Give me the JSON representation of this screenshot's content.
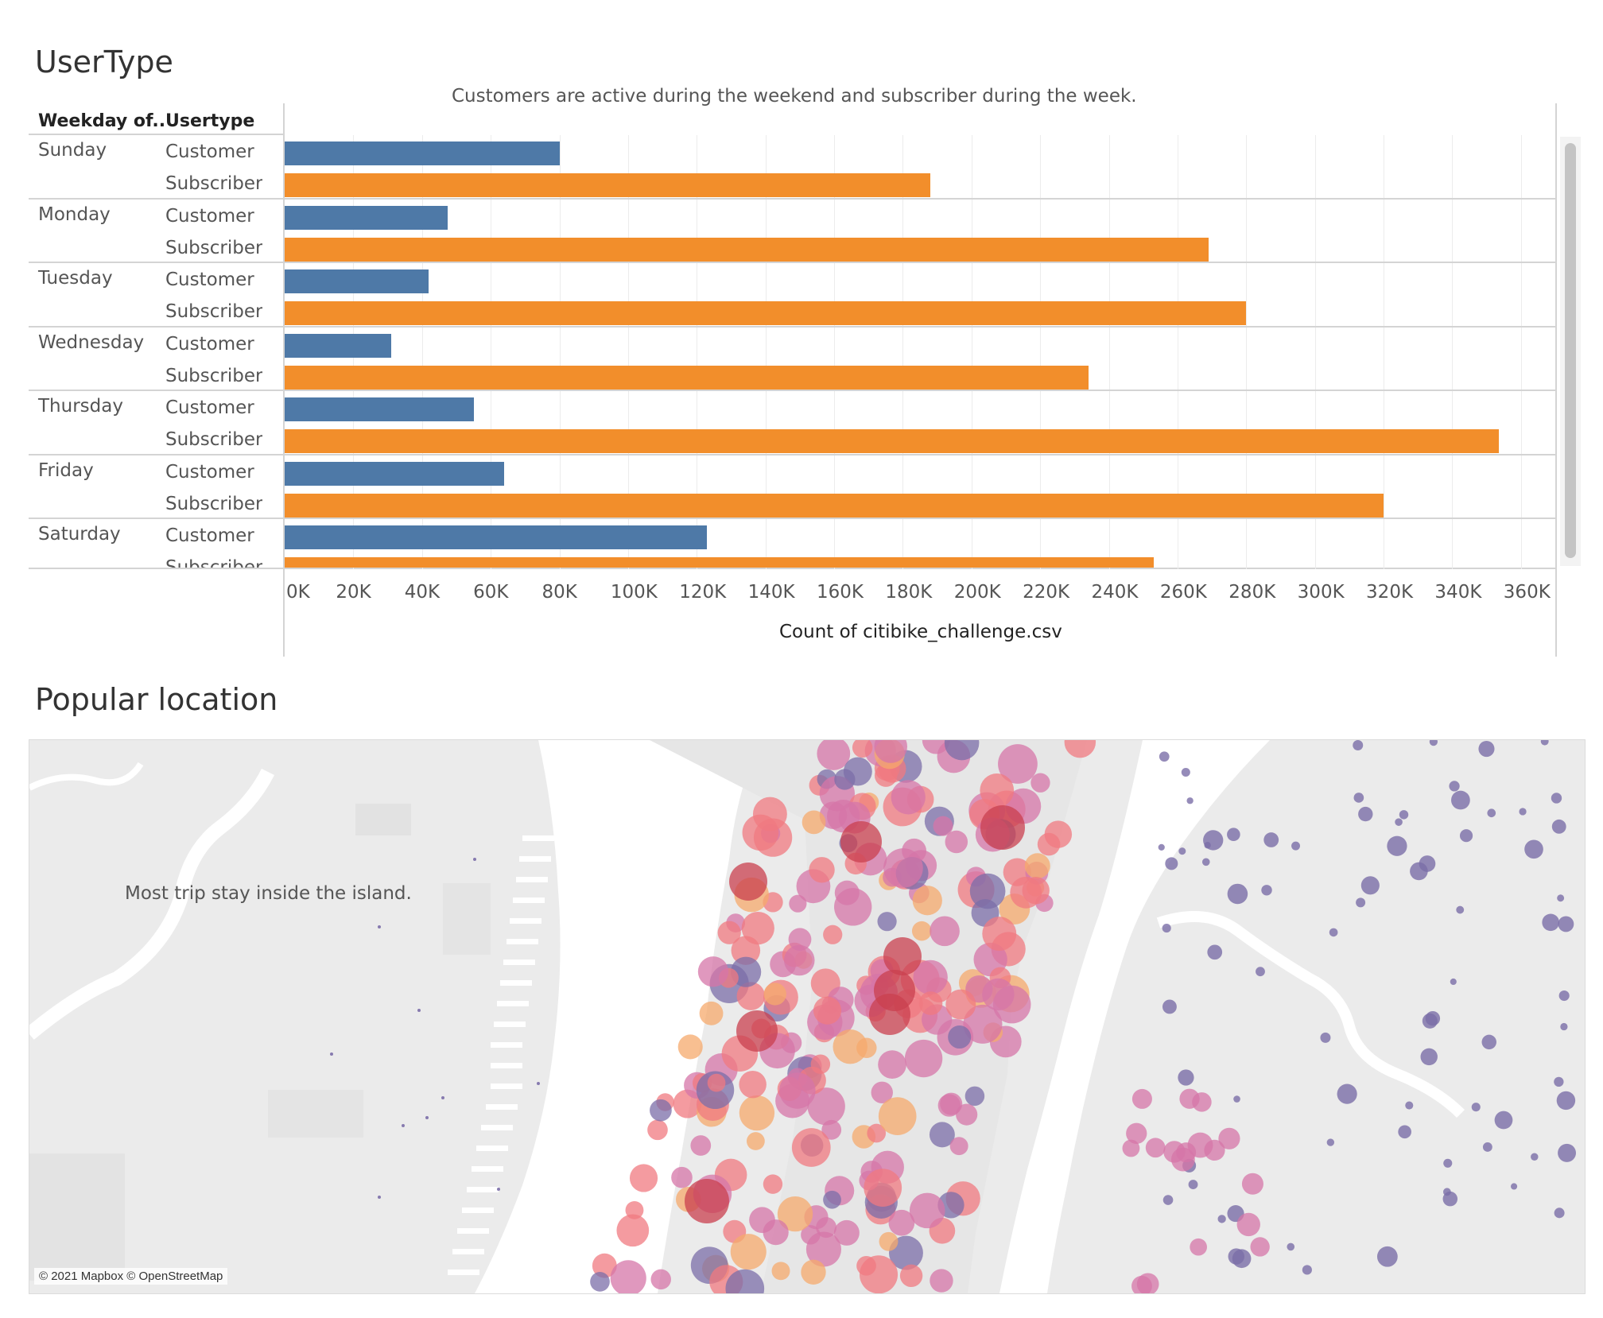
{
  "usertype_section": {
    "title": "UserType",
    "subtitle": "Customers are active during the weekend and subscriber during the week.",
    "col_header_weekday": "Weekday of..",
    "col_header_usertype": "Usertype"
  },
  "chart_data": {
    "type": "bar",
    "orientation": "horizontal",
    "title": "UserType",
    "subtitle": "Customers are active during the weekend and subscriber during the week.",
    "xlabel": "Count of citibike_challenge.csv",
    "xlim": [
      0,
      370000
    ],
    "x_ticks": [
      "0K",
      "20K",
      "40K",
      "60K",
      "80K",
      "100K",
      "120K",
      "140K",
      "160K",
      "180K",
      "200K",
      "220K",
      "240K",
      "260K",
      "280K",
      "300K",
      "320K",
      "340K",
      "360K"
    ],
    "x_tick_values": [
      0,
      20000,
      40000,
      60000,
      80000,
      100000,
      120000,
      140000,
      160000,
      180000,
      200000,
      220000,
      240000,
      260000,
      280000,
      300000,
      320000,
      340000,
      360000
    ],
    "grid": true,
    "series_colors": {
      "Customer": "#4e79a7",
      "Subscriber": "#f28e2b"
    },
    "groups": [
      {
        "weekday": "Sunday",
        "rows": [
          {
            "usertype": "Customer",
            "value": 80000
          },
          {
            "usertype": "Subscriber",
            "value": 188000
          }
        ]
      },
      {
        "weekday": "Monday",
        "rows": [
          {
            "usertype": "Customer",
            "value": 47500
          },
          {
            "usertype": "Subscriber",
            "value": 269000
          }
        ]
      },
      {
        "weekday": "Tuesday",
        "rows": [
          {
            "usertype": "Customer",
            "value": 42000
          },
          {
            "usertype": "Subscriber",
            "value": 280000
          }
        ]
      },
      {
        "weekday": "Wednesday",
        "rows": [
          {
            "usertype": "Customer",
            "value": 31000
          },
          {
            "usertype": "Subscriber",
            "value": 234000
          }
        ]
      },
      {
        "weekday": "Thursday",
        "rows": [
          {
            "usertype": "Customer",
            "value": 55000
          },
          {
            "usertype": "Subscriber",
            "value": 353500
          }
        ]
      },
      {
        "weekday": "Friday",
        "rows": [
          {
            "usertype": "Customer",
            "value": 64000
          },
          {
            "usertype": "Subscriber",
            "value": 320000
          }
        ]
      },
      {
        "weekday": "Saturday",
        "rows": [
          {
            "usertype": "Customer",
            "value": 123000
          },
          {
            "usertype": "Subscriber",
            "value": 253000
          }
        ]
      }
    ]
  },
  "map_section": {
    "title": "Popular location",
    "annotation": "Most trip stay inside the island.",
    "attribution": "© 2021 Mapbox © OpenStreetMap",
    "colors": {
      "land": "#ebebeb",
      "water": "#ffffff",
      "low": "#7b6ea8",
      "mid": "#d675a8",
      "high": "#f07a80",
      "peach": "#f5a96c",
      "top": "#c9404f"
    }
  }
}
